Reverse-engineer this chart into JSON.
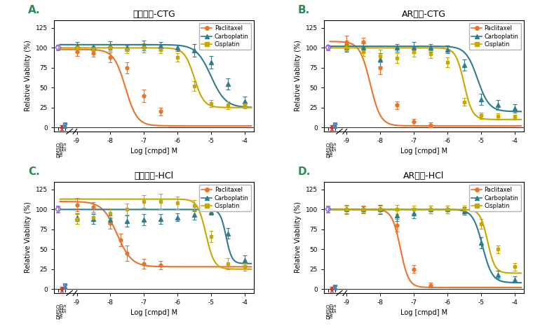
{
  "titles": [
    "传统方法-CTG",
    "AR平台-CTG",
    "传统方法-HCl",
    "AR平台-HCl"
  ],
  "panel_labels": [
    "A.",
    "B.",
    "C.",
    "D."
  ],
  "panel_label_colors": [
    "#2E8B8E",
    "#2E8B8E",
    "#2E8B8E",
    "#2E8B8E"
  ],
  "ylabel": "Relative Viability (%)",
  "xlabel": "Log [cmpd] M",
  "ylim": [
    -5,
    135
  ],
  "yticks": [
    0,
    25,
    50,
    75,
    100,
    125
  ],
  "colors": {
    "paclitaxel": "#E8742A",
    "carboplatin": "#2E7D8E",
    "cisplatin": "#C8A800",
    "dmso": "#9370DB",
    "tween": "#C0392B",
    "sts": "#4682B4"
  },
  "x_log_ticks": [
    -9,
    -8,
    -7,
    -6,
    -5,
    -4
  ],
  "background": "#FFFFFF"
}
